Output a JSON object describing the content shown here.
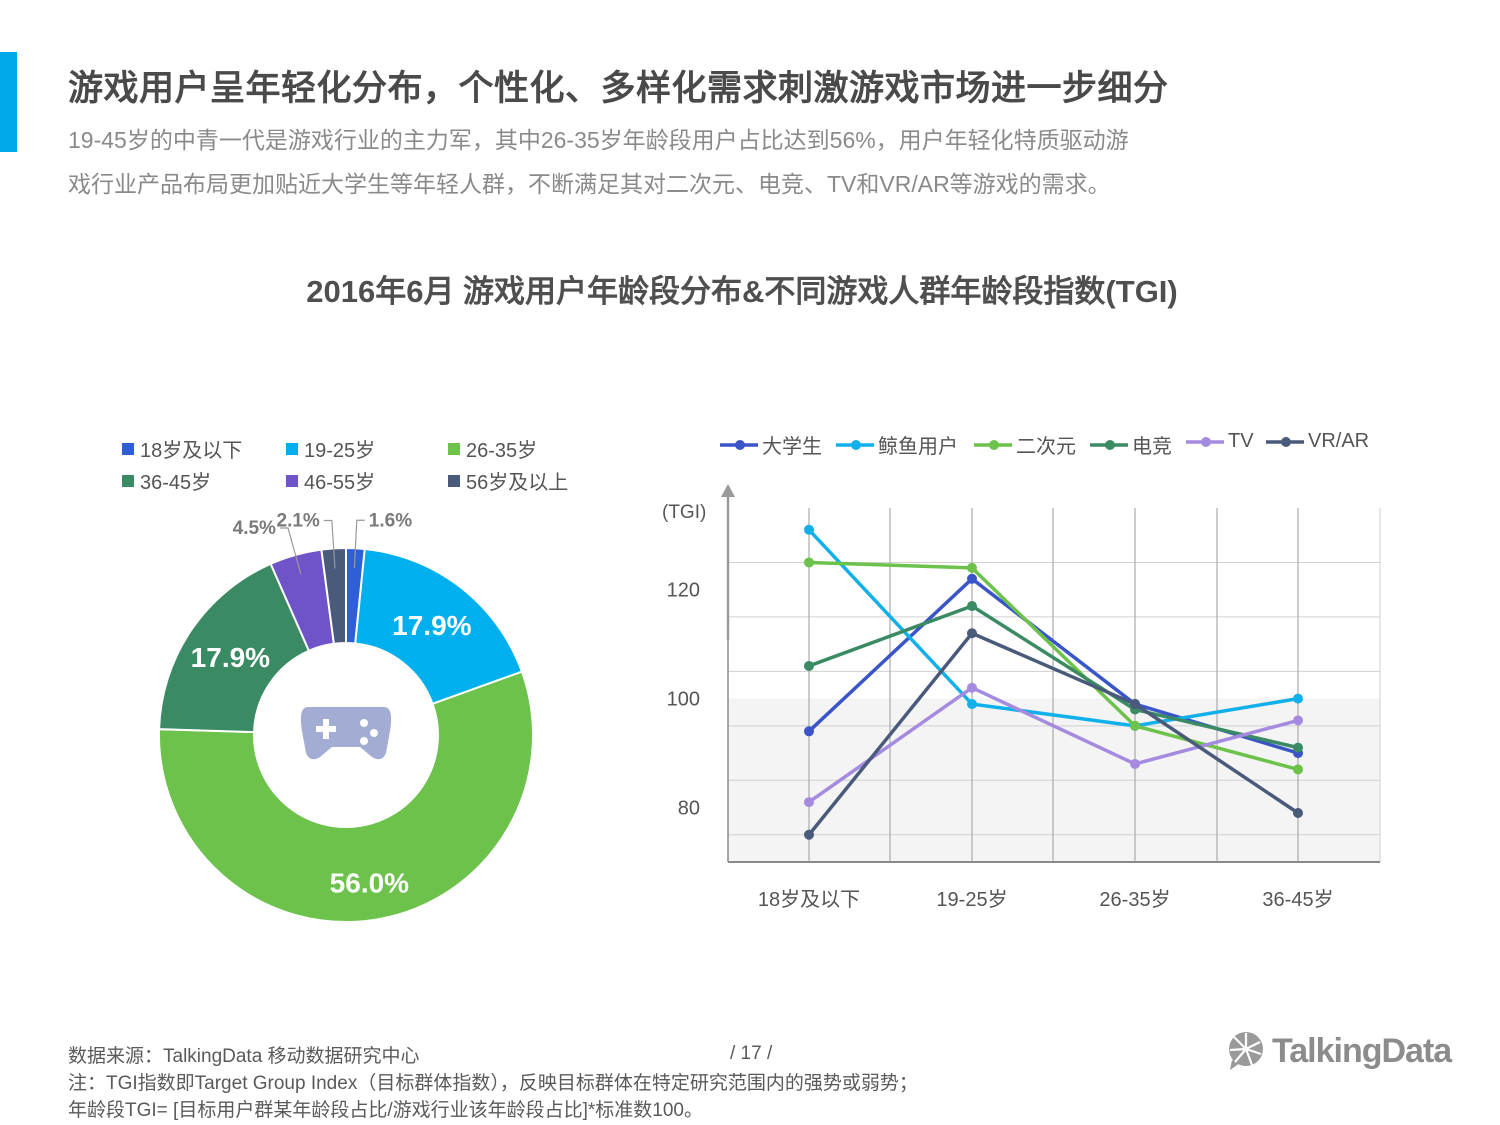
{
  "header": {
    "title": "游戏用户呈年轻化分布，个性化、多样化需求刺激游戏市场进一步细分",
    "subtitle_line1": "19-45岁的中青一代是游戏行业的主力军，其中26-35岁年龄段用户占比达到56%，用户年轻化特质驱动游",
    "subtitle_line2": "戏行业产品布局更加贴近大学生等年轻人群，不断满足其对二次元、电竞、TV和VR/AR等游戏的需求。",
    "accent_color": "#00a8e8"
  },
  "chart_title": "2016年6月 游戏用户年龄段分布&不同游戏人群年龄段指数(TGI)",
  "chart_data": [
    {
      "type": "pie",
      "variant": "donut",
      "center_icon": "gamepad-icon",
      "categories": [
        "18岁及以下",
        "19-25岁",
        "26-35岁",
        "36-45岁",
        "46-55岁",
        "56岁及以上"
      ],
      "values": [
        1.6,
        17.9,
        56.0,
        17.9,
        4.5,
        2.1
      ],
      "labels": [
        "1.6%",
        "17.9%",
        "56.0%",
        "17.9%",
        "4.5%",
        "2.1%"
      ],
      "colors": [
        "#2e5fd6",
        "#00b0ee",
        "#6cc24a",
        "#3a8a63",
        "#6e54c8",
        "#4a5a7a"
      ],
      "legend_placement": "top"
    },
    {
      "type": "line",
      "categories": [
        "18岁及以下",
        "19-25岁",
        "26-35岁",
        "36-45岁"
      ],
      "ylabel": "(TGI)",
      "ylim": [
        70,
        135
      ],
      "yticks": [
        80,
        100,
        120
      ],
      "grid": true,
      "legend_placement": "top",
      "series": [
        {
          "name": "大学生",
          "values": [
            94,
            122,
            99,
            90
          ],
          "color": "#3a55c8"
        },
        {
          "name": "鲸鱼用户",
          "values": [
            131,
            99,
            95,
            100
          ],
          "color": "#11b0ea"
        },
        {
          "name": "二次元",
          "values": [
            125,
            124,
            95,
            87
          ],
          "color": "#6cc24a"
        },
        {
          "name": "电竞",
          "values": [
            106,
            117,
            98,
            91
          ],
          "color": "#3a8a63"
        },
        {
          "name": "TV",
          "values": [
            81,
            102,
            88,
            96
          ],
          "color": "#a58be0"
        },
        {
          "name": "VR/AR",
          "values": [
            75,
            112,
            99,
            79
          ],
          "color": "#4a5a7a"
        }
      ]
    }
  ],
  "footer": {
    "source": "数据来源：TalkingData  移动数据研究中心",
    "note1": "注：TGI指数即Target  Group Index（目标群体指数），反映目标群体在特定研究范围内的强势或弱势；",
    "note2": "年龄段TGI= [目标用户群某年龄段占比/游戏行业该年龄段占比]*标准数100。",
    "page": "/  17  /"
  },
  "logo": {
    "text": "TalkingData",
    "icon": "talkingdata-logo-icon"
  }
}
